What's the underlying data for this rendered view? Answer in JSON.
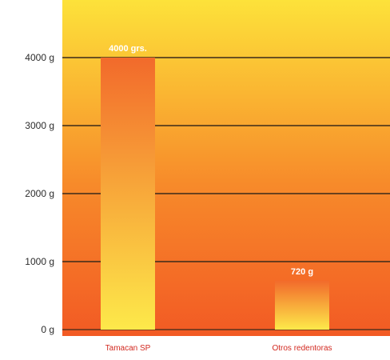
{
  "chart_data": {
    "type": "bar",
    "title": "",
    "xlabel": "",
    "ylabel": "",
    "categories": [
      "Tamacan SP",
      "Otros redentoras"
    ],
    "values": [
      4000,
      720
    ],
    "data_labels": [
      "4000 grs.",
      "720 g"
    ],
    "ylim": [
      0,
      4000
    ],
    "ytick_labels": [
      "0 g",
      "1000 g",
      "2000 g",
      "3000 g",
      "4000 g"
    ],
    "grid": true,
    "legend": "none"
  },
  "colors": {
    "background_top": "#fde23a",
    "background_bottom": "#f25a24",
    "bar_top": "#f26a2b",
    "bar_bottom": "#fde94a",
    "gridline": "#3a2a1a",
    "tick_label": "#2b2b2b",
    "category_label": "#d2281f",
    "data_label": "#ffffff"
  }
}
